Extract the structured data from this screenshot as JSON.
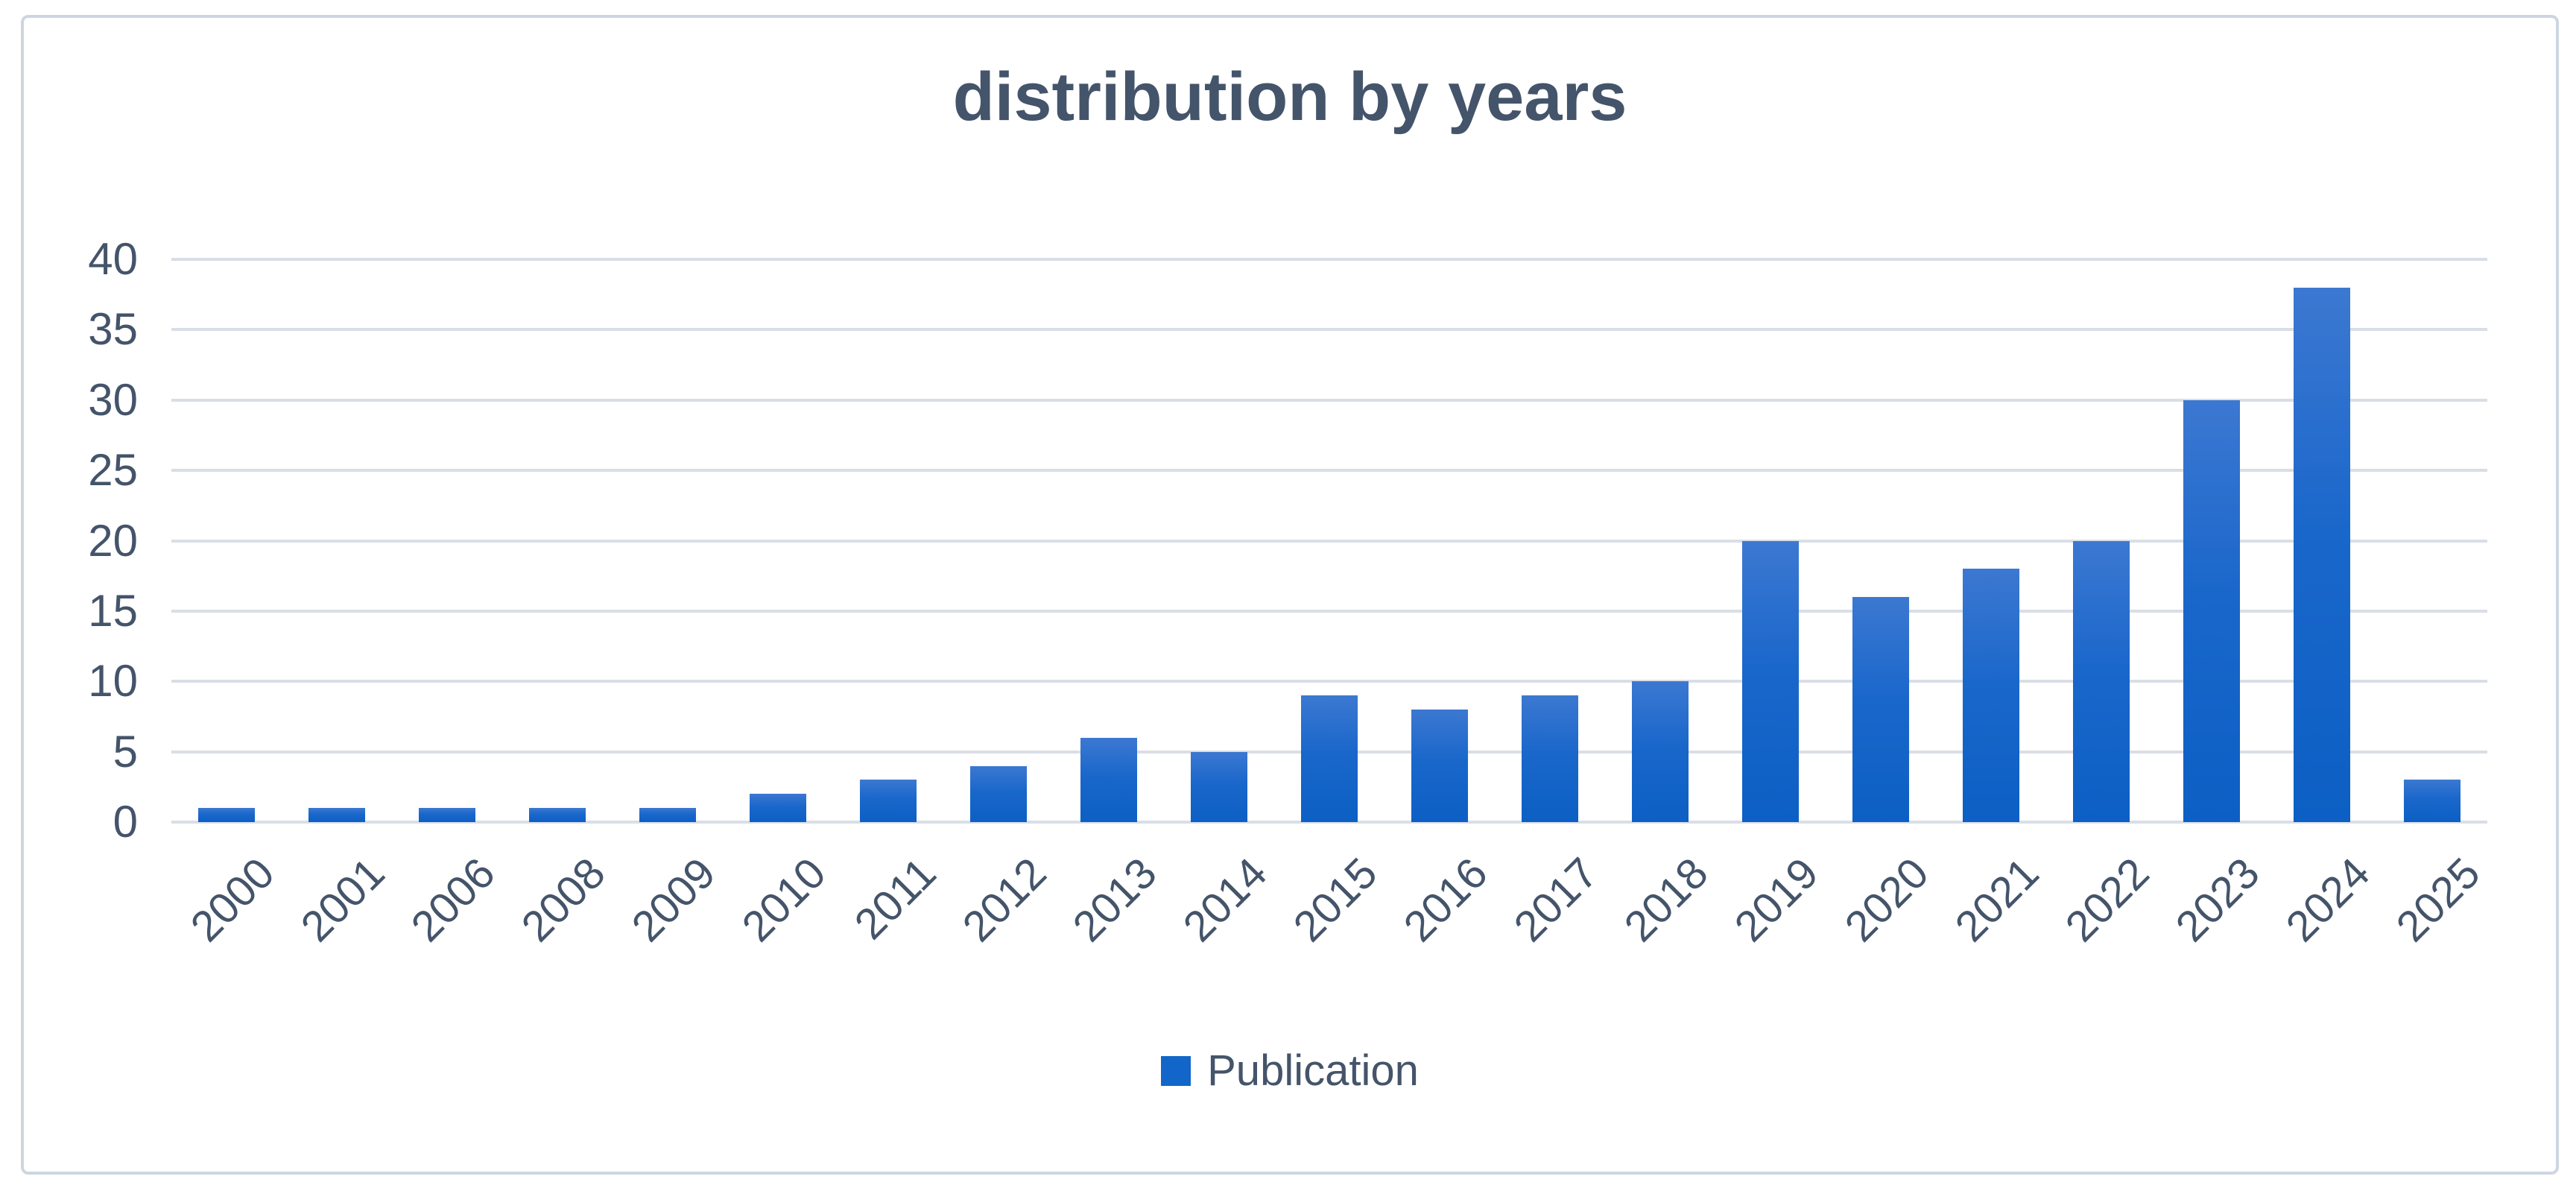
{
  "chart": {
    "title": "distribution by years"
  },
  "legend": {
    "label": "Publication"
  },
  "y_axis": {
    "tick_labels": [
      "0",
      "5",
      "10",
      "15",
      "20",
      "25",
      "30",
      "35",
      "40"
    ]
  },
  "colors": {
    "title_text": "#44546A",
    "axis_text": "#44546A",
    "gridline": "#D9DEE6",
    "bar_top": "#3C78D1",
    "bar_bottom": "#0C5FC4",
    "legend_marker": "#1266C9",
    "frame_border": "#CDD6E0",
    "background": "#FFFFFF"
  },
  "chart_data": {
    "type": "bar",
    "title": "distribution by years",
    "categories": [
      "2000",
      "2001",
      "2006",
      "2008",
      "2009",
      "2010",
      "2011",
      "2012",
      "2013",
      "2014",
      "2015",
      "2016",
      "2017",
      "2018",
      "2019",
      "2020",
      "2021",
      "2022",
      "2023",
      "2024",
      "2025"
    ],
    "series": [
      {
        "name": "Publication",
        "values": [
          1,
          1,
          1,
          1,
          1,
          2,
          3,
          4,
          6,
          5,
          9,
          8,
          9,
          10,
          20,
          16,
          18,
          20,
          30,
          38,
          3
        ]
      }
    ],
    "xlabel": "",
    "ylabel": "",
    "ylim": [
      0,
      40
    ],
    "ytick_step": 5,
    "grid": true,
    "legend_position": "bottom"
  }
}
